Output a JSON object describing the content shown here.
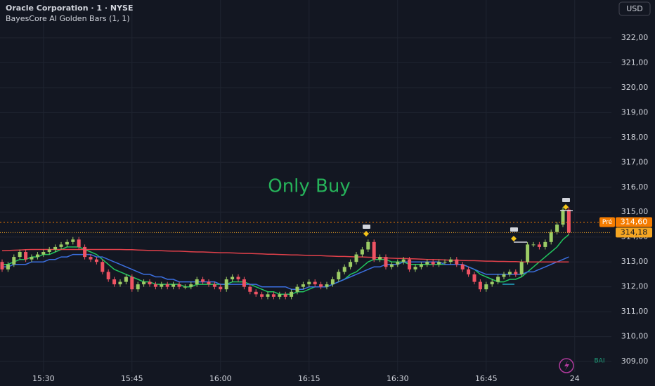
{
  "chart_data": {
    "type": "candlestick",
    "title": "Oracle Corporation · 1 · NYSE",
    "subtitle": "BayesCore AI Golden Bars (1, 1)",
    "currency": "USD",
    "annotation": "Only Buy",
    "badge": "BAI",
    "up_color": "#9ccc65",
    "down_color": "#ef5363",
    "grid": true,
    "categories": [
      null,
      null,
      null,
      null,
      null,
      null,
      null,
      "15:30",
      null,
      null,
      null,
      null,
      null,
      null,
      null,
      null,
      null,
      null,
      null,
      null,
      null,
      null,
      "15:45",
      null,
      null,
      null,
      null,
      null,
      null,
      null,
      null,
      null,
      null,
      null,
      null,
      null,
      null,
      "16:00",
      null,
      null,
      null,
      null,
      null,
      null,
      null,
      null,
      null,
      null,
      null,
      null,
      null,
      null,
      "16:15",
      null,
      null,
      null,
      null,
      null,
      null,
      null,
      null,
      null,
      null,
      null,
      null,
      null,
      null,
      "16:30",
      null,
      null,
      null,
      null,
      null,
      null,
      null,
      null,
      null,
      null,
      null,
      null,
      null,
      null,
      "16:45",
      null,
      null,
      null,
      null,
      null,
      null,
      null,
      null,
      null,
      null,
      null,
      null,
      null,
      null,
      "24"
    ],
    "open": [
      313.0,
      312.7,
      312.9,
      313.2,
      313.4,
      313.1,
      313.2,
      313.3,
      313.4,
      313.5,
      313.6,
      313.7,
      313.8,
      313.9,
      313.6,
      313.2,
      313.1,
      313.0,
      312.6,
      312.3,
      312.1,
      312.2,
      312.4,
      311.9,
      312.1,
      312.2,
      312.1,
      312.0,
      312.1,
      312.0,
      312.1,
      312.0,
      312.0,
      312.1,
      312.3,
      312.2,
      312.1,
      312.0,
      311.9,
      312.3,
      312.4,
      312.3,
      312.0,
      311.8,
      311.7,
      311.6,
      311.7,
      311.6,
      311.7,
      311.6,
      311.8,
      312.0,
      312.1,
      312.2,
      312.1,
      312.0,
      312.1,
      312.3,
      312.6,
      312.8,
      313.0,
      313.3,
      313.5,
      313.8,
      313.1,
      313.2,
      312.8,
      312.9,
      313.0,
      313.1,
      312.7,
      312.8,
      312.9,
      313.0,
      312.9,
      313.0,
      313.0,
      313.1,
      312.9,
      312.7,
      312.5,
      312.2,
      311.9,
      312.1,
      312.2,
      312.4,
      312.5,
      312.6,
      312.5,
      313.0,
      313.7,
      313.7,
      313.6,
      313.8,
      314.2,
      314.5,
      315.1,
      null
    ],
    "high": [
      313.1,
      313.0,
      313.3,
      313.5,
      313.5,
      313.3,
      313.4,
      313.5,
      313.6,
      313.7,
      313.8,
      313.9,
      314.0,
      314.0,
      313.7,
      313.3,
      313.2,
      313.1,
      312.7,
      312.4,
      312.3,
      312.5,
      312.5,
      312.2,
      312.3,
      312.3,
      312.2,
      312.2,
      312.2,
      312.2,
      312.2,
      312.1,
      312.2,
      312.4,
      312.4,
      312.3,
      312.2,
      312.1,
      312.4,
      312.5,
      312.5,
      312.4,
      312.1,
      311.9,
      311.8,
      311.8,
      311.8,
      311.8,
      311.8,
      311.9,
      312.1,
      312.2,
      312.3,
      312.3,
      312.2,
      312.2,
      312.4,
      312.7,
      312.9,
      313.1,
      313.4,
      313.6,
      313.9,
      313.9,
      313.3,
      313.3,
      313.0,
      313.1,
      313.2,
      313.2,
      312.9,
      313.0,
      313.1,
      313.1,
      313.1,
      313.1,
      313.2,
      313.2,
      313.0,
      312.8,
      312.6,
      312.3,
      312.2,
      312.3,
      312.5,
      312.6,
      312.7,
      312.7,
      313.1,
      313.8,
      313.8,
      313.8,
      313.9,
      314.3,
      314.6,
      315.2,
      315.2,
      null
    ],
    "low": [
      312.6,
      312.6,
      312.8,
      313.1,
      313.0,
      313.0,
      313.1,
      313.2,
      313.3,
      313.4,
      313.5,
      313.6,
      313.7,
      313.5,
      313.1,
      313.0,
      312.9,
      312.5,
      312.2,
      312.0,
      312.0,
      312.1,
      311.8,
      311.8,
      312.0,
      312.0,
      311.9,
      311.9,
      311.9,
      311.9,
      311.9,
      311.9,
      311.9,
      312.0,
      312.1,
      312.0,
      311.9,
      311.8,
      311.8,
      312.2,
      312.2,
      311.9,
      311.7,
      311.6,
      311.5,
      311.5,
      311.5,
      311.5,
      311.5,
      311.5,
      311.7,
      311.9,
      312.0,
      312.0,
      311.9,
      311.9,
      312.0,
      312.2,
      312.5,
      312.7,
      312.9,
      313.2,
      313.4,
      313.0,
      313.0,
      312.7,
      312.7,
      312.8,
      312.9,
      312.6,
      312.6,
      312.7,
      312.8,
      312.8,
      312.8,
      312.9,
      312.9,
      312.8,
      312.6,
      312.4,
      312.1,
      311.8,
      311.8,
      312.0,
      312.1,
      312.3,
      312.4,
      312.4,
      312.4,
      312.9,
      313.6,
      313.5,
      313.5,
      313.7,
      314.1,
      314.4,
      314.08,
      null
    ],
    "close": [
      312.7,
      312.9,
      313.2,
      313.4,
      313.1,
      313.2,
      313.3,
      313.4,
      313.5,
      313.6,
      313.7,
      313.8,
      313.9,
      313.6,
      313.2,
      313.1,
      313.0,
      312.6,
      312.3,
      312.1,
      312.2,
      312.4,
      311.9,
      312.1,
      312.2,
      312.1,
      312.0,
      312.1,
      312.0,
      312.1,
      312.0,
      312.0,
      312.1,
      312.3,
      312.2,
      312.1,
      312.0,
      311.9,
      312.3,
      312.4,
      312.3,
      312.0,
      311.8,
      311.7,
      311.6,
      311.7,
      311.6,
      311.7,
      311.6,
      311.8,
      312.0,
      312.1,
      312.2,
      312.1,
      312.0,
      312.1,
      312.3,
      312.6,
      312.8,
      313.0,
      313.3,
      313.5,
      313.8,
      313.1,
      313.2,
      312.8,
      312.9,
      313.0,
      313.1,
      312.7,
      312.8,
      312.9,
      313.0,
      312.9,
      313.0,
      313.0,
      313.1,
      312.9,
      312.7,
      312.5,
      312.2,
      311.9,
      312.1,
      312.2,
      312.4,
      312.5,
      312.6,
      312.5,
      313.0,
      313.7,
      313.7,
      313.6,
      313.8,
      314.2,
      314.5,
      315.1,
      314.18,
      null
    ],
    "overlays": [
      {
        "color": "#22c55e",
        "values": [
          312.9,
          312.9,
          313.0,
          313.1,
          313.1,
          313.2,
          313.2,
          313.3,
          313.3,
          313.4,
          313.5,
          313.6,
          313.6,
          313.6,
          313.5,
          313.4,
          313.3,
          313.1,
          312.9,
          312.7,
          312.6,
          312.5,
          312.4,
          312.3,
          312.2,
          312.2,
          312.1,
          312.1,
          312.1,
          312.1,
          312.1,
          312.0,
          312.0,
          312.1,
          312.1,
          312.1,
          312.1,
          312.1,
          312.1,
          312.2,
          312.2,
          312.2,
          312.1,
          312.0,
          311.9,
          311.8,
          311.8,
          311.7,
          311.7,
          311.7,
          311.8,
          311.8,
          311.9,
          312.0,
          312.0,
          312.0,
          312.1,
          312.2,
          312.3,
          312.5,
          312.6,
          312.8,
          313.0,
          313.1,
          313.1,
          313.1,
          313.0,
          313.0,
          313.0,
          312.9,
          312.9,
          312.9,
          312.9,
          312.9,
          312.9,
          312.9,
          312.9,
          312.9,
          312.9,
          312.8,
          312.7,
          312.5,
          312.4,
          312.3,
          312.2,
          312.2,
          312.3,
          312.3,
          312.4,
          312.6,
          312.8,
          313.0,
          313.2,
          313.4,
          313.6,
          313.9,
          314.1,
          null
        ]
      },
      {
        "color": "#3b6fe0",
        "values": [
          312.8,
          312.8,
          312.9,
          312.9,
          312.9,
          313.0,
          313.0,
          313.0,
          313.1,
          313.1,
          313.2,
          313.2,
          313.3,
          313.3,
          313.3,
          313.3,
          313.2,
          313.2,
          313.1,
          313.0,
          312.9,
          312.8,
          312.7,
          312.6,
          312.5,
          312.5,
          312.4,
          312.4,
          312.3,
          312.3,
          312.2,
          312.2,
          312.2,
          312.2,
          312.2,
          312.2,
          312.2,
          312.1,
          312.1,
          312.1,
          312.1,
          312.1,
          312.1,
          312.1,
          312.0,
          312.0,
          312.0,
          312.0,
          312.0,
          311.9,
          311.9,
          311.9,
          312.0,
          312.0,
          312.0,
          312.0,
          312.1,
          312.2,
          312.3,
          312.4,
          312.5,
          312.6,
          312.7,
          312.8,
          312.8,
          312.9,
          312.9,
          312.9,
          313.0,
          313.0,
          313.0,
          313.0,
          313.0,
          313.0,
          313.0,
          312.9,
          312.9,
          312.9,
          312.9,
          312.8,
          312.7,
          312.6,
          312.5,
          312.5,
          312.5,
          312.5,
          312.5,
          312.5,
          312.5,
          312.6,
          312.6,
          312.7,
          312.8,
          312.9,
          313.0,
          313.1,
          313.2,
          null
        ]
      },
      {
        "color": "#e0404a",
        "values": [
          313.45,
          313.46,
          313.47,
          313.48,
          313.49,
          313.5,
          313.5,
          313.5,
          313.5,
          313.5,
          313.5,
          313.5,
          313.5,
          313.5,
          313.5,
          313.5,
          313.5,
          313.5,
          313.5,
          313.5,
          313.5,
          313.49,
          313.49,
          313.48,
          313.47,
          313.46,
          313.46,
          313.45,
          313.44,
          313.43,
          313.43,
          313.42,
          313.41,
          313.4,
          313.4,
          313.39,
          313.38,
          313.37,
          313.37,
          313.36,
          313.35,
          313.34,
          313.34,
          313.33,
          313.32,
          313.31,
          313.31,
          313.3,
          313.29,
          313.28,
          313.28,
          313.27,
          313.26,
          313.25,
          313.25,
          313.24,
          313.23,
          313.22,
          313.22,
          313.21,
          313.2,
          313.2,
          313.19,
          313.18,
          313.17,
          313.16,
          313.15,
          313.14,
          313.14,
          313.13,
          313.12,
          313.11,
          313.1,
          313.1,
          313.09,
          313.08,
          313.07,
          313.07,
          313.06,
          313.05,
          313.05,
          313.04,
          313.03,
          313.03,
          313.02,
          313.02,
          313.01,
          313.01,
          313.0,
          313.0,
          313.0,
          313.0,
          313.0,
          313.0,
          313.0,
          313.0,
          313.0,
          null
        ]
      }
    ],
    "premarket": {
      "name": "Pré",
      "value": 314.6,
      "label": "314,60",
      "color": "#f57c00"
    },
    "last": {
      "value": 314.18,
      "label": "314,18",
      "color": "#f5a623"
    },
    "ylim": [
      308.58,
      323.52
    ],
    "yticks": [
      {
        "value": 309,
        "label": "309,00"
      },
      {
        "value": 310,
        "label": "310,00"
      },
      {
        "value": 311,
        "label": "311,00"
      },
      {
        "value": 312,
        "label": "312,00"
      },
      {
        "value": 313,
        "label": "313,00"
      },
      {
        "value": 314,
        "label": "314,00"
      },
      {
        "value": 315,
        "label": "315,00"
      },
      {
        "value": 316,
        "label": "316,00"
      },
      {
        "value": 317,
        "label": "317,00"
      },
      {
        "value": 318,
        "label": "318,00"
      },
      {
        "value": 319,
        "label": "319,00"
      },
      {
        "value": 320,
        "label": "320,00"
      },
      {
        "value": 321,
        "label": "321,00"
      },
      {
        "value": 322,
        "label": "322,00"
      }
    ]
  }
}
